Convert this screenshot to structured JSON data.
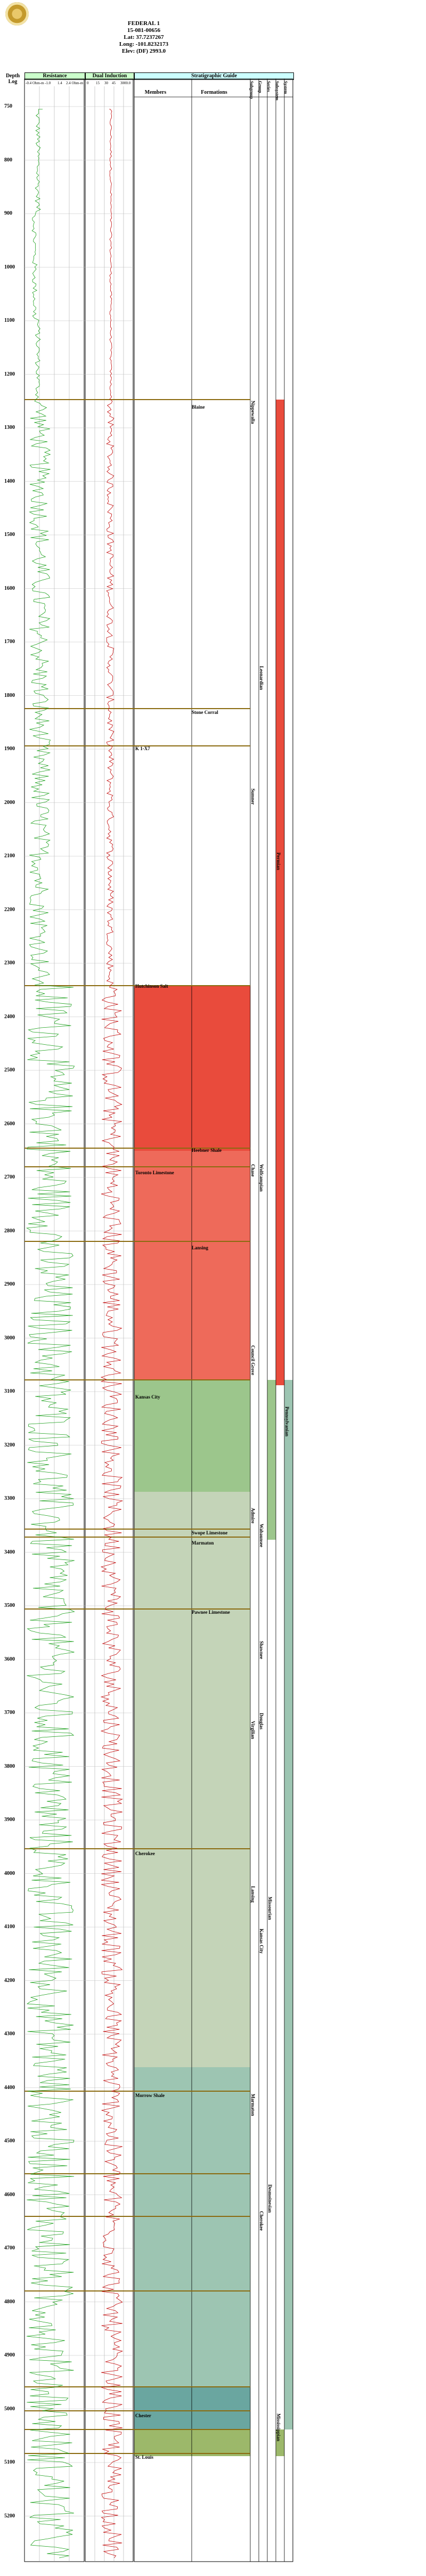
{
  "header": {
    "logo_icon": "kgs-seal-icon",
    "well_name": "FEDERAL 1",
    "api": "15-081-00656",
    "lat": "Lat: 37.7237267",
    "long": "Long: -101.8232173",
    "elev": "Elev: (DF) 2993.0"
  },
  "columns": {
    "depth_label_1": "Depth",
    "depth_label_2": "Log",
    "resistance": "Resistance",
    "resistance_scale": [
      "-0.4 Ohm-m",
      "-1.0",
      "1.4",
      "2.4 Ohm-m"
    ],
    "gamma": "Dual Induction",
    "gamma_scale": [
      "0",
      "15",
      "30",
      "45",
      "3000.0"
    ],
    "strat_guide": "Stratigraphic Guide",
    "members": "Members",
    "formations": "Formations",
    "narrow_headers": [
      "Subgroup",
      "Group",
      "Series",
      "Subsystem",
      "System"
    ]
  },
  "depths": [
    {
      "label": "750",
      "y": 0
    },
    {
      "label": "800",
      "y": 1
    },
    {
      "label": "900",
      "y": 2
    },
    {
      "label": "1000",
      "y": 3
    },
    {
      "label": "1100",
      "y": 4
    },
    {
      "label": "1200",
      "y": 5
    },
    {
      "label": "1300",
      "y": 6
    },
    {
      "label": "1400",
      "y": 7
    },
    {
      "label": "1500",
      "y": 8
    },
    {
      "label": "1600",
      "y": 9
    },
    {
      "label": "1700",
      "y": 10
    },
    {
      "label": "1800",
      "y": 11
    },
    {
      "label": "1900",
      "y": 12
    },
    {
      "label": "2000",
      "y": 13
    },
    {
      "label": "2100",
      "y": 14
    },
    {
      "label": "2200",
      "y": 15
    },
    {
      "label": "2300",
      "y": 16
    },
    {
      "label": "2400",
      "y": 17
    },
    {
      "label": "2500",
      "y": 18
    },
    {
      "label": "2600",
      "y": 19
    },
    {
      "label": "2700",
      "y": 20
    },
    {
      "label": "2800",
      "y": 21
    },
    {
      "label": "2900",
      "y": 22
    },
    {
      "label": "3000",
      "y": 23
    },
    {
      "label": "3100",
      "y": 24
    },
    {
      "label": "3200",
      "y": 25
    },
    {
      "label": "3300",
      "y": 26
    },
    {
      "label": "3400",
      "y": 27
    },
    {
      "label": "3500",
      "y": 28
    },
    {
      "label": "3600",
      "y": 29
    },
    {
      "label": "3700",
      "y": 30
    },
    {
      "label": "3800",
      "y": 31
    },
    {
      "label": "3900",
      "y": 32
    },
    {
      "label": "4000",
      "y": 33
    },
    {
      "label": "4100",
      "y": 34
    },
    {
      "label": "4200",
      "y": 35
    },
    {
      "label": "4300",
      "y": 36
    },
    {
      "label": "4400",
      "y": 37
    },
    {
      "label": "4500",
      "y": 38
    },
    {
      "label": "4600",
      "y": 39
    },
    {
      "label": "4700",
      "y": 40
    },
    {
      "label": "4800",
      "y": 41
    },
    {
      "label": "4900",
      "y": 42
    },
    {
      "label": "5000",
      "y": 43
    },
    {
      "label": "5100",
      "y": 44
    },
    {
      "label": "5200",
      "y": 45
    }
  ],
  "members": [
    {
      "name": "Heebner Shale",
      "depth": 3720
    },
    {
      "name": "Toronto Limestone",
      "depth": 3740
    },
    {
      "name": "Lansing",
      "depth": 3770
    },
    {
      "name": "Kansas City",
      "depth": 4170
    },
    {
      "name": "Swope Limestone",
      "depth": 4250
    },
    {
      "name": "Marmaton",
      "depth": 4440
    },
    {
      "name": "Pawnee Limestone",
      "depth": 4540
    },
    {
      "name": "Cherokee",
      "depth": 4700
    },
    {
      "name": "Morrow Shale",
      "depth": 4890
    },
    {
      "name": "Chester",
      "depth": 5000
    },
    {
      "name": "St. Louis",
      "depth": 5100
    }
  ],
  "formations": [
    {
      "name": "Stone Corral",
      "depth": 1860
    },
    {
      "name": "Blaine",
      "depth": 1290
    },
    {
      "name": "Hutchinson Salt",
      "depth": 2370
    }
  ],
  "labels": {
    "k_marker": "K 1-X7",
    "subgroup_1": "Nippewalla",
    "subgroup_2": "Sumner",
    "group_1": "Chase",
    "group_2": "Council Grove",
    "group_3": "Admire",
    "group_4": "Wabaunsee",
    "group_5": "Shawnee",
    "group_6": "Douglas",
    "group_7": "Lansing",
    "group_8": "Kansas City",
    "group_9": "Marmaton",
    "group_10": "Cherokee",
    "series_1": "Leonardian",
    "series_2": "Wolfcampian",
    "series_3": "Virgilian",
    "series_4": "Missourian",
    "series_5": "Desmoinesian",
    "system_1": "Permian",
    "system_2": "Pennsylvanian",
    "system_3": "Mississippian"
  },
  "colors": {
    "permian_red": "#e94b3c",
    "permian_light": "#ee6a5a",
    "lower_perm": "#9cc68c",
    "penn_light": "#c4d4b8",
    "penn_dark": "#9dc5b2",
    "miss_teal": "#6aa6a0",
    "chester_green": "#9cb86a",
    "resistance_curve": "#1a9f1a",
    "gamma_curve": "#c00000",
    "marker": "#8b6b10"
  }
}
